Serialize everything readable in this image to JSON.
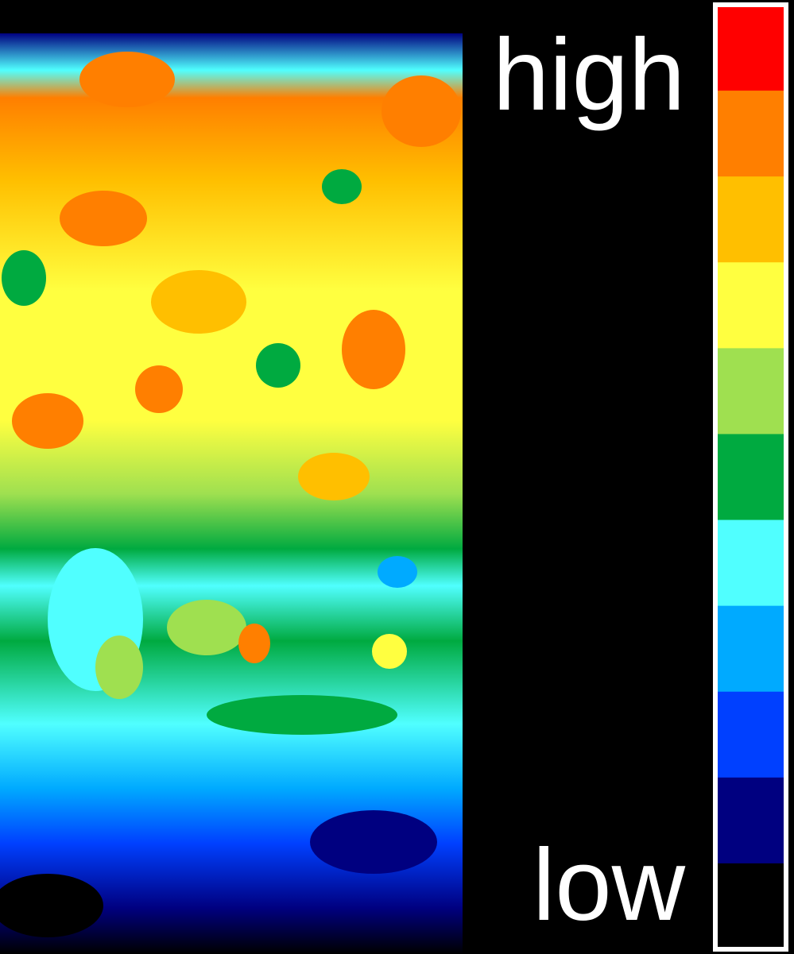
{
  "labels": {
    "high": "high",
    "low": "low"
  },
  "colorbar": {
    "colors": [
      "#ff0000",
      "#ff7f00",
      "#ffbf00",
      "#ffff40",
      "#9fe050",
      "#00aa40",
      "#50ffff",
      "#00aaff",
      "#0040ff",
      "#000080",
      "#000000"
    ]
  }
}
